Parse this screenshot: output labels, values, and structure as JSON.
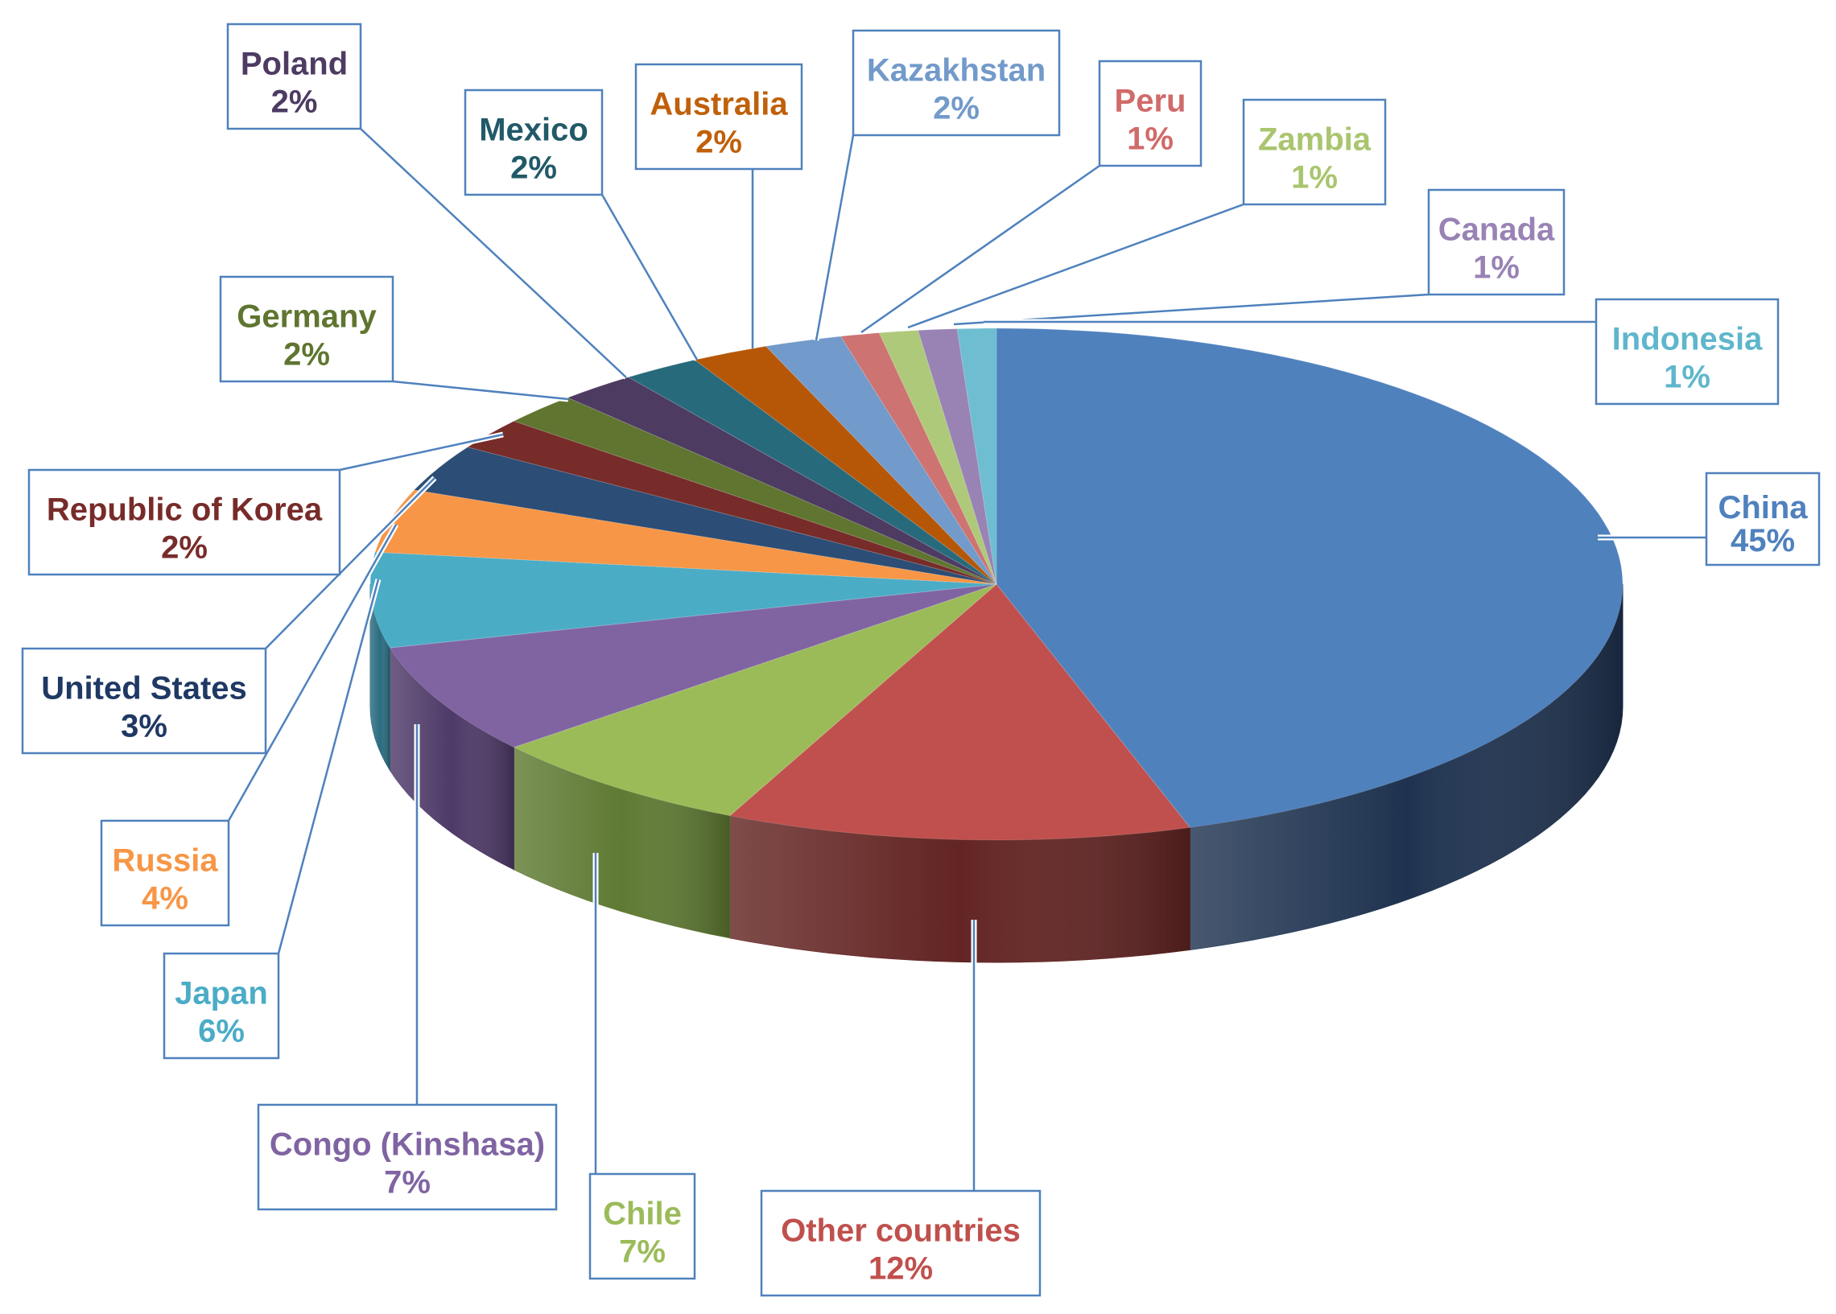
{
  "chart_data": {
    "type": "pie",
    "title": "",
    "style": "3d-exploded-labels-with-leader-lines",
    "slices": [
      {
        "label": "China",
        "value": 45,
        "value_label": "45%",
        "color": "#4F81BD",
        "side_color": "#1F3350"
      },
      {
        "label": "Other countries",
        "value": 12,
        "value_label": "12%",
        "color": "#C0504D",
        "side_color": "#632523"
      },
      {
        "label": "Chile",
        "value": 7,
        "value_label": "7%",
        "color": "#9BBB59",
        "side_color": "#5F7A33"
      },
      {
        "label": "Congo (Kinshasa)",
        "value": 7,
        "value_label": "7%",
        "color": "#8064A2",
        "side_color": "#4E3A68"
      },
      {
        "label": "Japan",
        "value": 6,
        "value_label": "6%",
        "color": "#4BACC6",
        "side_color": "#2A6C80"
      },
      {
        "label": "Russia",
        "value": 4,
        "value_label": "4%",
        "color": "#F79646",
        "side_color": "#A55A19"
      },
      {
        "label": "United States",
        "value": 3,
        "value_label": "3%",
        "color": "#2C4D75",
        "side_color": "#1B2F48"
      },
      {
        "label": "Republic of Korea",
        "value": 2,
        "value_label": "2%",
        "color": "#772C2A",
        "side_color": "#4A1A19"
      },
      {
        "label": "Germany",
        "value": 2,
        "value_label": "2%",
        "color": "#5F7530",
        "side_color": "#3B4A1D"
      },
      {
        "label": "Poland",
        "value": 2,
        "value_label": "2%",
        "color": "#4D3B62",
        "side_color": "#2F243D"
      },
      {
        "label": "Mexico",
        "value": 2,
        "value_label": "2%",
        "color": "#276A7C",
        "side_color": "#17404B"
      },
      {
        "label": "Australia",
        "value": 2,
        "value_label": "2%",
        "color": "#B65708",
        "side_color": "#6E3504"
      },
      {
        "label": "Kazakhstan",
        "value": 2,
        "value_label": "2%",
        "color": "#729ACA",
        "side_color": "#46638A"
      },
      {
        "label": "Peru",
        "value": 1,
        "value_label": "1%",
        "color": "#CD7371",
        "side_color": "#8A4543"
      },
      {
        "label": "Zambia",
        "value": 1,
        "value_label": "1%",
        "color": "#AFC97A",
        "side_color": "#74874D"
      },
      {
        "label": "Canada",
        "value": 1,
        "value_label": "1%",
        "color": "#9983B5",
        "side_color": "#645279"
      },
      {
        "label": "Indonesia",
        "value": 1,
        "value_label": "1%",
        "color": "#6FBDD1",
        "side_color": "#437E8D"
      }
    ],
    "label_colors": {
      "China": "#4F81BD",
      "Other countries": "#C0504D",
      "Chile": "#9BBB59",
      "Congo (Kinshasa)": "#8064A2",
      "Japan": "#4BACC6",
      "Russia": "#F79646",
      "United States": "#1F3864",
      "Republic of Korea": "#772C2A",
      "Germany": "#5F7530",
      "Poland": "#4D3B62",
      "Mexico": "#215968",
      "Australia": "#C0600A",
      "Kazakhstan": "#729ACA",
      "Peru": "#D06B69",
      "Zambia": "#A9C56E",
      "Canada": "#9983B5",
      "Indonesia": "#5FB6CC"
    },
    "legend": "none",
    "leader_line_color": "#4F81BD"
  }
}
